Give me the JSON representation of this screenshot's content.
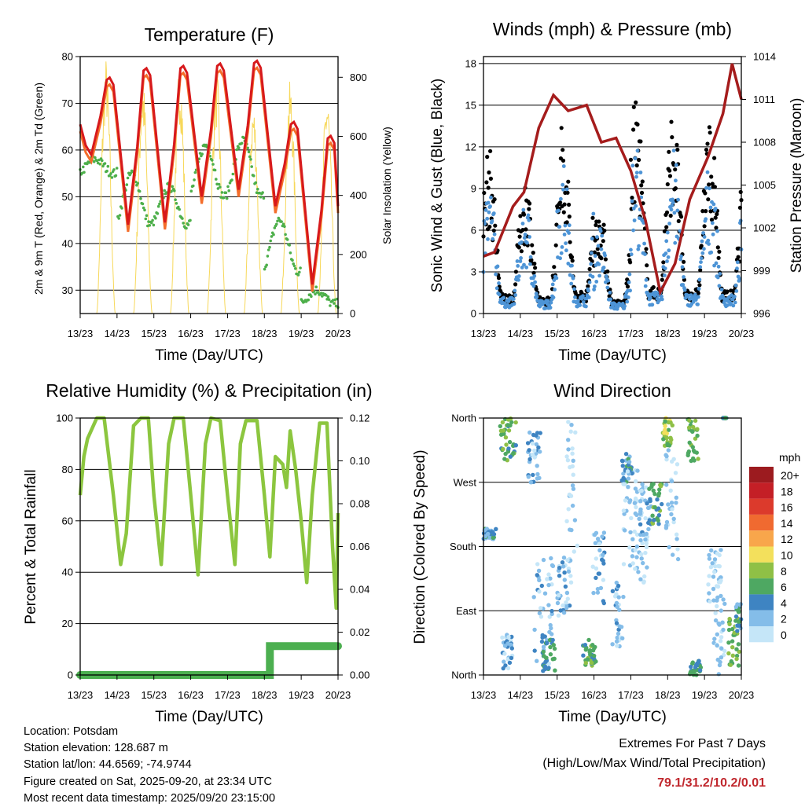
{
  "chart_data": [
    {
      "id": "temperature",
      "type": "line",
      "title": "Temperature (F)",
      "xlabel": "Time (Day/UTC)",
      "ylabel": "2m & 9m T (Red, Orange) & 2m Td (Green)",
      "y2label": "Solar Insolation (Yellow)",
      "x_ticks": [
        "13/23",
        "14/23",
        "15/23",
        "16/23",
        "17/23",
        "18/23",
        "19/23",
        "20/23"
      ],
      "x_range": [
        0,
        7
      ],
      "ylim": [
        25,
        80
      ],
      "y_ticks": [
        30,
        40,
        50,
        60,
        70,
        80
      ],
      "y2lim": [
        0,
        870
      ],
      "y2_ticks": [
        0,
        200,
        400,
        600,
        800
      ],
      "colors": {
        "t2m": "#d7191c",
        "t9m": "#f46d2a",
        "td": "#4daf4a",
        "solar": "#f7d85a"
      },
      "daily_max": [
        75.5,
        77.5,
        78,
        78.5,
        79.1,
        66,
        63
      ],
      "daily_min": [
        59,
        44,
        44.5,
        50,
        51.5,
        48,
        31.2
      ],
      "dewpoint_max": [
        58,
        55,
        52,
        61,
        62,
        45,
        30
      ],
      "dewpoint_min": [
        55,
        44,
        44,
        50,
        50,
        34,
        27
      ],
      "series": [
        {
          "name": "2m T",
          "color": "#d7191c"
        },
        {
          "name": "9m T",
          "color": "#f46d2a"
        },
        {
          "name": "2m Td",
          "color": "#4daf4a"
        },
        {
          "name": "Solar Insolation",
          "color": "#f7d85a"
        }
      ]
    },
    {
      "id": "winds",
      "type": "scatter",
      "title": "Winds (mph) & Pressure (mb)",
      "xlabel": "Time (Day/UTC)",
      "ylabel": "Sonic Wind & Gust (Blue, Black)",
      "y2label": "Station Pressure (Maroon)",
      "x_ticks": [
        "13/23",
        "14/23",
        "15/23",
        "16/23",
        "17/23",
        "18/23",
        "19/23",
        "20/23"
      ],
      "x_range": [
        0,
        7
      ],
      "ylim": [
        0,
        18.5
      ],
      "y_ticks": [
        0,
        3,
        6,
        9,
        12,
        15,
        18
      ],
      "y2lim": [
        996,
        1014
      ],
      "y2_ticks": [
        996,
        999,
        1002,
        1005,
        1008,
        1011,
        1014
      ],
      "colors": {
        "wind": "#4d94d6",
        "gust": "#000000",
        "pressure": "#a51c1c"
      },
      "pressure_points": [
        [
          0,
          1000
        ],
        [
          0.3,
          1000.3
        ],
        [
          0.8,
          1003.5
        ],
        [
          1.1,
          1004.5
        ],
        [
          1.5,
          1009
        ],
        [
          1.9,
          1011.3
        ],
        [
          2.3,
          1010.2
        ],
        [
          2.8,
          1010.6
        ],
        [
          3.2,
          1008
        ],
        [
          3.6,
          1008.3
        ],
        [
          4.0,
          1006
        ],
        [
          4.4,
          1002.5
        ],
        [
          4.8,
          997.5
        ],
        [
          5.2,
          999.5
        ],
        [
          5.6,
          1004
        ],
        [
          6.1,
          1007
        ],
        [
          6.5,
          1010
        ],
        [
          6.75,
          1013.5
        ],
        [
          7.0,
          1011
        ]
      ],
      "series": [
        {
          "name": "Sonic Wind",
          "color": "#4d94d6"
        },
        {
          "name": "Gust",
          "color": "#000000"
        },
        {
          "name": "Station Pressure",
          "color": "#a51c1c"
        }
      ]
    },
    {
      "id": "humidity",
      "type": "line",
      "title": "Relative Humidity (%) & Precipitation (in)",
      "xlabel": "Time (Day/UTC)",
      "ylabel": "Percent & Total Rainfall",
      "x_ticks": [
        "13/23",
        "14/23",
        "15/23",
        "16/23",
        "17/23",
        "18/23",
        "19/23",
        "20/23"
      ],
      "x_range": [
        0,
        7
      ],
      "ylim": [
        0,
        100
      ],
      "y_ticks": [
        0,
        20,
        40,
        60,
        80,
        100
      ],
      "y2lim": [
        0,
        0.12
      ],
      "y2_ticks": [
        "0.00",
        "0.02",
        "0.04",
        "0.06",
        "0.08",
        "0.10",
        "0.12"
      ],
      "colors": {
        "rh": "#8cc63f",
        "precip": "#4caf50"
      },
      "rh_points": [
        [
          0,
          70
        ],
        [
          0.1,
          85
        ],
        [
          0.2,
          92
        ],
        [
          0.45,
          100
        ],
        [
          0.65,
          100
        ],
        [
          0.9,
          70
        ],
        [
          1.1,
          43
        ],
        [
          1.25,
          55
        ],
        [
          1.45,
          97
        ],
        [
          1.65,
          100
        ],
        [
          1.85,
          100
        ],
        [
          2.0,
          70
        ],
        [
          2.2,
          43
        ],
        [
          2.4,
          90
        ],
        [
          2.55,
          100
        ],
        [
          2.8,
          100
        ],
        [
          3.0,
          70
        ],
        [
          3.2,
          39
        ],
        [
          3.4,
          90
        ],
        [
          3.55,
          100
        ],
        [
          3.8,
          99
        ],
        [
          4.0,
          70
        ],
        [
          4.2,
          43
        ],
        [
          4.35,
          90
        ],
        [
          4.5,
          99
        ],
        [
          4.8,
          99
        ],
        [
          5.0,
          70
        ],
        [
          5.15,
          46
        ],
        [
          5.3,
          85
        ],
        [
          5.5,
          82
        ],
        [
          5.6,
          73
        ],
        [
          5.7,
          95
        ],
        [
          5.85,
          80
        ],
        [
          6.0,
          60
        ],
        [
          6.15,
          36
        ],
        [
          6.3,
          70
        ],
        [
          6.5,
          98
        ],
        [
          6.7,
          98
        ],
        [
          6.85,
          50
        ],
        [
          6.95,
          26
        ],
        [
          7.0,
          63
        ]
      ],
      "precip_points": [
        [
          0,
          0.0
        ],
        [
          5.15,
          0.0
        ],
        [
          5.15,
          0.0135
        ],
        [
          7.0,
          0.0135
        ]
      ],
      "series": [
        {
          "name": "Relative Humidity",
          "color": "#8cc63f"
        },
        {
          "name": "Total Precipitation",
          "color": "#4caf50"
        }
      ]
    },
    {
      "id": "wind_direction",
      "type": "scatter",
      "title": "Wind Direction",
      "xlabel": "Time (Day/UTC)",
      "ylabel": "Direction (Colored By Speed)",
      "x_ticks": [
        "13/23",
        "14/23",
        "15/23",
        "16/23",
        "17/23",
        "18/23",
        "19/23",
        "20/23"
      ],
      "x_range": [
        0,
        7
      ],
      "ylim": [
        0,
        360
      ],
      "y_ticks": [
        0,
        90,
        180,
        270,
        360
      ],
      "y_tick_labels": [
        "North",
        "East",
        "South",
        "West",
        "North"
      ],
      "legend": {
        "title": "mph",
        "labels": [
          "20+",
          "18",
          "16",
          "14",
          "12",
          "10",
          "8",
          "6",
          "4",
          "2",
          "0"
        ],
        "colors": [
          "#9c1b1f",
          "#c41f26",
          "#dc3a2c",
          "#f06a30",
          "#f8a64b",
          "#f3e05c",
          "#8fc046",
          "#4ea862",
          "#3e84c2",
          "#84bde9",
          "#c5e6f8"
        ]
      },
      "clusters": [
        [
          0.0,
          0.35,
          190,
          205,
          3.5
        ],
        [
          0.45,
          0.9,
          300,
          360,
          6
        ],
        [
          0.5,
          0.8,
          5,
          60,
          2
        ],
        [
          1.2,
          1.55,
          270,
          340,
          2
        ],
        [
          1.35,
          1.9,
          15,
          170,
          2
        ],
        [
          1.6,
          1.95,
          5,
          50,
          5
        ],
        [
          2.0,
          2.4,
          80,
          165,
          2
        ],
        [
          2.25,
          2.55,
          140,
          360,
          1
        ],
        [
          2.7,
          3.05,
          10,
          50,
          6
        ],
        [
          2.95,
          3.3,
          100,
          200,
          2
        ],
        [
          3.5,
          3.8,
          40,
          130,
          2
        ],
        [
          3.75,
          4.05,
          270,
          310,
          4
        ],
        [
          3.8,
          4.2,
          150,
          290,
          1
        ],
        [
          4.1,
          4.45,
          120,
          270,
          1
        ],
        [
          4.25,
          4.55,
          180,
          260,
          2
        ],
        [
          4.5,
          4.85,
          210,
          270,
          6
        ],
        [
          4.85,
          5.15,
          320,
          360,
          8
        ],
        [
          4.95,
          5.3,
          160,
          320,
          1
        ],
        [
          5.55,
          5.85,
          300,
          360,
          7
        ],
        [
          5.6,
          5.9,
          0,
          20,
          5
        ],
        [
          6.1,
          6.45,
          100,
          180,
          1
        ],
        [
          6.25,
          6.55,
          0,
          110,
          1
        ],
        [
          6.65,
          6.95,
          10,
          80,
          7
        ],
        [
          6.85,
          7.0,
          60,
          100,
          4
        ],
        [
          6.5,
          6.6,
          360,
          360,
          6
        ]
      ]
    }
  ],
  "footer": {
    "location": "Location: Potsdam",
    "elevation": "Station elevation: 128.687 m",
    "latlon": "Station lat/lon: 44.6569; -74.9744",
    "created": "Figure created on Sat, 2025-09-20, at 23:34 UTC",
    "recent": "Most recent data timestamp: 2025/09/20 23:15:00",
    "extremes_title": "Extremes For Past 7 Days",
    "extremes_subtitle": "(High/Low/Max Wind/Total Precipitation)",
    "extremes_values": "79.1/31.2/10.2/0.01"
  }
}
